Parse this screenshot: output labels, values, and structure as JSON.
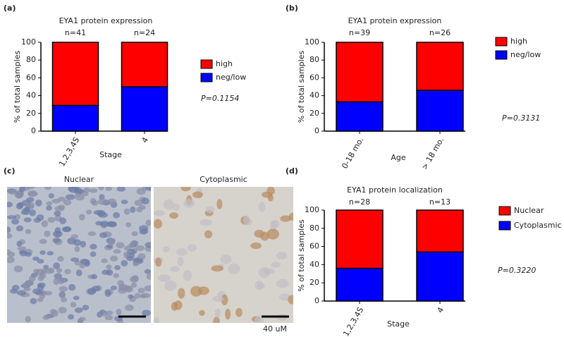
{
  "chart_data": [
    {
      "type": "bar",
      "stacked": true,
      "panel_label": "(a)",
      "title": "EYA1 protein expression",
      "n_labels": [
        "n=41",
        "n=24"
      ],
      "categories": [
        "1,2,3,4S",
        "4"
      ],
      "series": [
        {
          "name": "high",
          "color": "#ff0000",
          "values": [
            71,
            50
          ]
        },
        {
          "name": "neg/low",
          "color": "#0000ff",
          "values": [
            29,
            50
          ]
        }
      ],
      "ylim": [
        0,
        100
      ],
      "yticks": [
        0,
        20,
        40,
        60,
        80,
        100
      ],
      "ylabel": "% of total samples",
      "xlabel": "Stage",
      "p_value": "P=0.1154"
    },
    {
      "type": "bar",
      "stacked": true,
      "panel_label": "(b)",
      "title": "EYA1 protein expression",
      "n_labels": [
        "n=39",
        "n=26"
      ],
      "categories": [
        "0-18 mo.",
        "> 18 mo."
      ],
      "series": [
        {
          "name": "high",
          "color": "#ff0000",
          "values": [
            67,
            54
          ]
        },
        {
          "name": "neg/low",
          "color": "#0000ff",
          "values": [
            33,
            46
          ]
        }
      ],
      "ylim": [
        0,
        100
      ],
      "yticks": [
        0,
        20,
        40,
        60,
        80,
        100
      ],
      "ylabel": "% of total samples",
      "xlabel": "Age",
      "p_value": "P=0.3131"
    },
    {
      "type": "bar",
      "stacked": true,
      "panel_label": "(d)",
      "title": "EYA1 protein localization",
      "n_labels": [
        "n=28",
        "n=13"
      ],
      "categories": [
        "1,2,3,4S",
        "4"
      ],
      "series": [
        {
          "name": "Nuclear",
          "color": "#ff0000",
          "values": [
            64,
            46
          ]
        },
        {
          "name": "Cytoplasmic",
          "color": "#0000ff",
          "values": [
            36,
            54
          ]
        }
      ],
      "ylim": [
        0,
        100
      ],
      "yticks": [
        0,
        20,
        40,
        60,
        80,
        100
      ],
      "ylabel": "% of total samples",
      "xlabel": "Stage",
      "p_value": "P=0.3220"
    }
  ],
  "image_panel": {
    "panel_label": "(c)",
    "titles": [
      "Nuclear",
      "Cytoplasmic"
    ],
    "scale_label": "40 uM"
  }
}
